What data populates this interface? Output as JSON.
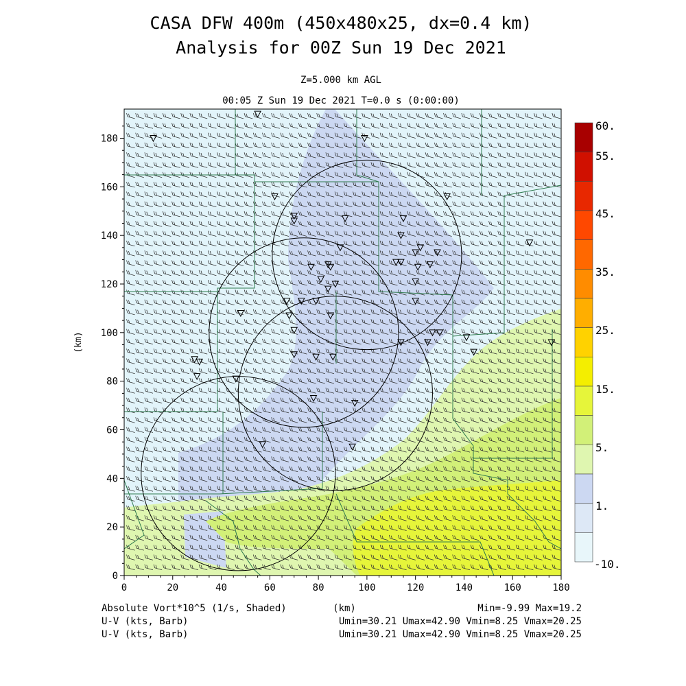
{
  "header": {
    "title_line1": "CASA DFW 400m (450x480x25, dx=0.4 km)",
    "title_line2": "Analysis for 00Z Sun 19 Dec 2021",
    "level": "Z=5.000 km AGL",
    "time_line": "00:05 Z Sun 19 Dec 2021    T=0.0 s (0:00:00)"
  },
  "footer": {
    "left1": "Absolute Vort*10^5 (1/s, Shaded)",
    "left2": "U-V (kts, Barb)",
    "left3": "U-V (kts, Barb)",
    "xunit": "(km)",
    "minmax": "Min=-9.99 Max=19.2",
    "stats2": "Umin=30.21 Umax=42.90 Vmin=8.25 Vmax=20.25",
    "stats3": "Umin=30.21 Umax=42.90 Vmin=8.25 Vmax=20.25"
  },
  "chart_data": {
    "type": "heatmap",
    "xlabel": "",
    "ylabel": "(km)",
    "xlim": [
      0,
      180
    ],
    "ylim": [
      0,
      192
    ],
    "x_ticks": [
      0,
      20,
      40,
      60,
      80,
      100,
      120,
      140,
      160,
      180
    ],
    "y_ticks": [
      0,
      20,
      40,
      60,
      80,
      100,
      120,
      140,
      160,
      180
    ],
    "colorbar": {
      "labels": [
        "60.",
        "55.",
        "45.",
        "35.",
        "25.",
        "15.",
        "5.",
        "1.",
        "-10."
      ],
      "colors": [
        "#a80000",
        "#d01000",
        "#e82800",
        "#ff4800",
        "#ff6800",
        "#ff8c00",
        "#ffae00",
        "#ffd200",
        "#f4ee00",
        "#e6f53a",
        "#d2f078",
        "#dff6b0",
        "#ccd8f2",
        "#dde8f6",
        "#e8f6fa"
      ]
    },
    "field_colors": {
      "background": "#e2f4fa",
      "band_1_to_5": "#ccd8f2",
      "band_5_to_10": "#dff6b0",
      "band_10_to_15": "#d2f078",
      "band_15_to_20": "#e6f53a"
    },
    "radar_rings": [
      {
        "center": [
          100,
          132
        ],
        "radius": 39
      },
      {
        "center": [
          74,
          100
        ],
        "radius": 39
      },
      {
        "center": [
          87,
          75
        ],
        "radius": 40
      },
      {
        "center": [
          47,
          42
        ],
        "radius": 40
      }
    ],
    "station_markers": [
      [
        55,
        190
      ],
      [
        12,
        180
      ],
      [
        99,
        180
      ],
      [
        62,
        156
      ],
      [
        133,
        156
      ],
      [
        70,
        148
      ],
      [
        91,
        147
      ],
      [
        115,
        147
      ],
      [
        70,
        146
      ],
      [
        114,
        140
      ],
      [
        89,
        135
      ],
      [
        122,
        135
      ],
      [
        167,
        137
      ],
      [
        120,
        133
      ],
      [
        129,
        133
      ],
      [
        114,
        129
      ],
      [
        112,
        129
      ],
      [
        126,
        128
      ],
      [
        121,
        127
      ],
      [
        77,
        127
      ],
      [
        84,
        128
      ],
      [
        85,
        127
      ],
      [
        81,
        122
      ],
      [
        87,
        120
      ],
      [
        84,
        118
      ],
      [
        120,
        121
      ],
      [
        73,
        113
      ],
      [
        67,
        113
      ],
      [
        79,
        113
      ],
      [
        48,
        108
      ],
      [
        68,
        107
      ],
      [
        85,
        107
      ],
      [
        120,
        113
      ],
      [
        70,
        101
      ],
      [
        127,
        100
      ],
      [
        130,
        100
      ],
      [
        141,
        98
      ],
      [
        114,
        96
      ],
      [
        125,
        96
      ],
      [
        176,
        96
      ],
      [
        144,
        92
      ],
      [
        70,
        91
      ],
      [
        79,
        90
      ],
      [
        86,
        90
      ],
      [
        29,
        89
      ],
      [
        31,
        88
      ],
      [
        30,
        82
      ],
      [
        46,
        81
      ],
      [
        78,
        73
      ],
      [
        95,
        71
      ],
      [
        57,
        54
      ],
      [
        94,
        53
      ]
    ]
  }
}
